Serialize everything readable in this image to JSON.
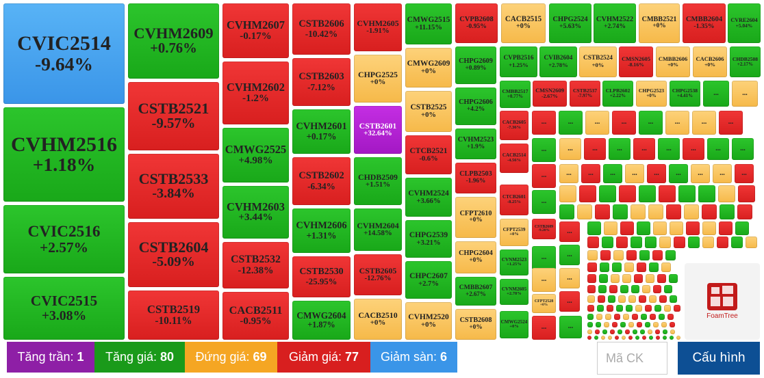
{
  "tiles": [
    {
      "code": "CVIC2514",
      "change": "-9.64%"
    },
    {
      "code": "CVHM2516",
      "change": "+1.18%"
    },
    {
      "code": "CVIC2516",
      "change": "+2.57%"
    },
    {
      "code": "CVIC2515",
      "change": "+3.08%"
    },
    {
      "code": "CVHM2609",
      "change": "+0.76%"
    },
    {
      "code": "CSTB2521",
      "change": "-9.57%"
    },
    {
      "code": "CSTB2533",
      "change": "-3.84%"
    },
    {
      "code": "CSTB2604",
      "change": "-5.09%"
    },
    {
      "code": "CSTB2519",
      "change": "-10.11%"
    },
    {
      "code": "CVHM2607",
      "change": "-0.17%"
    },
    {
      "code": "CVHM2602",
      "change": "-1.2%"
    },
    {
      "code": "CMWG2525",
      "change": "+4.98%"
    },
    {
      "code": "CVHM2603",
      "change": "+3.44%"
    },
    {
      "code": "CSTB2532",
      "change": "-12.38%"
    },
    {
      "code": "CACB2511",
      "change": "-0.95%"
    },
    {
      "code": "CSTB2606",
      "change": "-10.42%"
    },
    {
      "code": "CSTB2603",
      "change": "-7.12%"
    },
    {
      "code": "CVHM2601",
      "change": "+0.17%"
    },
    {
      "code": "CSTB2602",
      "change": "-6.34%"
    },
    {
      "code": "CVHM2606",
      "change": "+1.31%"
    },
    {
      "code": "CSTB2530",
      "change": "-25.95%"
    },
    {
      "code": "CMWG2604",
      "change": "+1.87%"
    },
    {
      "code": "CVHM2605",
      "change": "-1.91%"
    },
    {
      "code": "CHPG2525",
      "change": "+0%"
    },
    {
      "code": "CSTB2601",
      "change": "+32.64%"
    },
    {
      "code": "CHDB2509",
      "change": "+1.51%"
    },
    {
      "code": "CVHM2604",
      "change": "+14.58%"
    },
    {
      "code": "CSTB2605",
      "change": "-12.76%"
    },
    {
      "code": "CACB2510",
      "change": "+0%"
    },
    {
      "code": "CMWG2515",
      "change": "+11.15%"
    },
    {
      "code": "CMWG2609",
      "change": "+0%"
    },
    {
      "code": "CSTB2525",
      "change": "+0%"
    },
    {
      "code": "CTCB2521",
      "change": "-0.6%"
    },
    {
      "code": "CVHM2524",
      "change": "+3.66%"
    },
    {
      "code": "CHPG2539",
      "change": "+3.21%"
    },
    {
      "code": "CHPC2607",
      "change": "+2.7%"
    },
    {
      "code": "CVHM2520",
      "change": "+0%"
    },
    {
      "code": "CVPB2608",
      "change": "-0.95%"
    },
    {
      "code": "CHPG2609",
      "change": "+0.89%"
    },
    {
      "code": "CHPG2606",
      "change": "+4.2%"
    },
    {
      "code": "CVHM2523",
      "change": "+1.9%"
    },
    {
      "code": "CLPB2503",
      "change": "-1.96%"
    },
    {
      "code": "CFPT2610",
      "change": "+0%"
    },
    {
      "code": "CHPG2604",
      "change": "+0%"
    },
    {
      "code": "CMBB2607",
      "change": "+2.67%"
    },
    {
      "code": "CSTB2608",
      "change": "+0%"
    },
    {
      "code": "CACB2515",
      "change": "+0%"
    },
    {
      "code": "CHPG2524",
      "change": "+5.63%"
    },
    {
      "code": "CVHM2522",
      "change": "+2.74%"
    },
    {
      "code": "CMBB2521",
      "change": "+0%"
    },
    {
      "code": "CMBB2604",
      "change": "-1.35%"
    },
    {
      "code": "CVRE2604",
      "change": "+5.04%"
    },
    {
      "code": "CVPB2516",
      "change": "+1.25%"
    },
    {
      "code": "CVIB2604",
      "change": "+2.78%"
    },
    {
      "code": "CSTB2524",
      "change": "+0%"
    },
    {
      "code": "CMSN2605",
      "change": "-8.16%"
    },
    {
      "code": "CMBB2606",
      "change": "+0%"
    },
    {
      "code": "CACB2606",
      "change": "+0%"
    },
    {
      "code": "CHDB2508",
      "change": "+2.17%"
    },
    {
      "code": "CMBB2517",
      "change": "+0.77%"
    },
    {
      "code": "CMSN2609",
      "change": "-2.67%"
    },
    {
      "code": "CSTB2537",
      "change": "-7.97%"
    },
    {
      "code": "CLPB2602",
      "change": "+2.22%"
    },
    {
      "code": "CHPG2523",
      "change": "+0%"
    },
    {
      "code": "CHPG2538",
      "change": "+4.41%"
    },
    {
      "code": "CACB2605",
      "change": "-7.36%"
    },
    {
      "code": "CACB2514",
      "change": "-4.56%"
    },
    {
      "code": "CTCB2601",
      "change": "-8.25%"
    },
    {
      "code": "CFPT2539",
      "change": "+0%"
    },
    {
      "code": "CVNM2523",
      "change": "+1.25%"
    },
    {
      "code": "CVNM2605",
      "change": "+2.78%"
    },
    {
      "code": "CMWG2524",
      "change": "+0%"
    },
    {
      "code": "CFPT2528",
      "change": "+0%"
    },
    {
      "code": "CSTB2609",
      "change": "-9.20%"
    }
  ],
  "ellipsis": "...",
  "legend": [
    {
      "label": "Tăng trần:",
      "count": 1
    },
    {
      "label": "Tăng giá:",
      "count": 80
    },
    {
      "label": "Đứng giá:",
      "count": 69
    },
    {
      "label": "Giảm giá:",
      "count": 77
    },
    {
      "label": "Giảm sàn:",
      "count": 6
    }
  ],
  "search_placeholder": "Mã CK",
  "config_button": "Cấu hình",
  "logo": "FoamTree"
}
